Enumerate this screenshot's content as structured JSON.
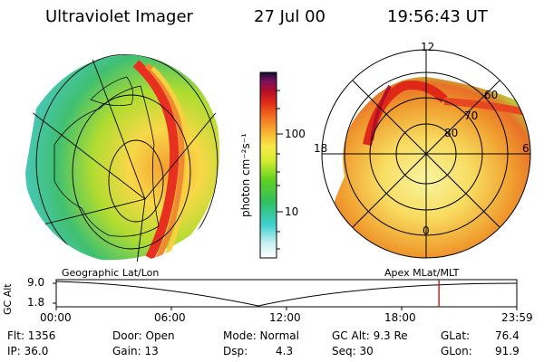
{
  "header": {
    "instrument": "Ultraviolet Imager",
    "date": "27 Jul 00",
    "time": "19:56:43 UT"
  },
  "colorbar": {
    "unit_label": "photon cm⁻²s⁻¹",
    "ticks": [
      "100",
      "10"
    ]
  },
  "polar_plot": {
    "mlt_labels": [
      "12",
      "18",
      "6",
      "0"
    ],
    "mlat_labels": [
      "60",
      "70",
      "80"
    ]
  },
  "altitude_strip": {
    "axis_label": "GC Alt",
    "y_ticks": [
      "9.0",
      "1.8"
    ],
    "left_caption": "Geographic Lat/Lon",
    "right_caption": "Apex MLat/MLT",
    "x_ticks": [
      "00:00",
      "06:00",
      "12:00",
      "18:00",
      "23:59"
    ],
    "current_time_fraction": 0.831
  },
  "footer": {
    "flt": "Flt: 1356",
    "ip": "IP: 36.0",
    "door": "Door: Open",
    "gain": "Gain: 13",
    "mode": "Mode: Normal",
    "dsp_label": "Dsp:",
    "dsp_value": "4.3",
    "gc_alt": "GC Alt: 9.3 Re",
    "seq": "Seq: 30",
    "glat_label": "GLat:",
    "glat_value": "76.4",
    "glon_label": "GLon:",
    "glon_value": "91.9"
  }
}
